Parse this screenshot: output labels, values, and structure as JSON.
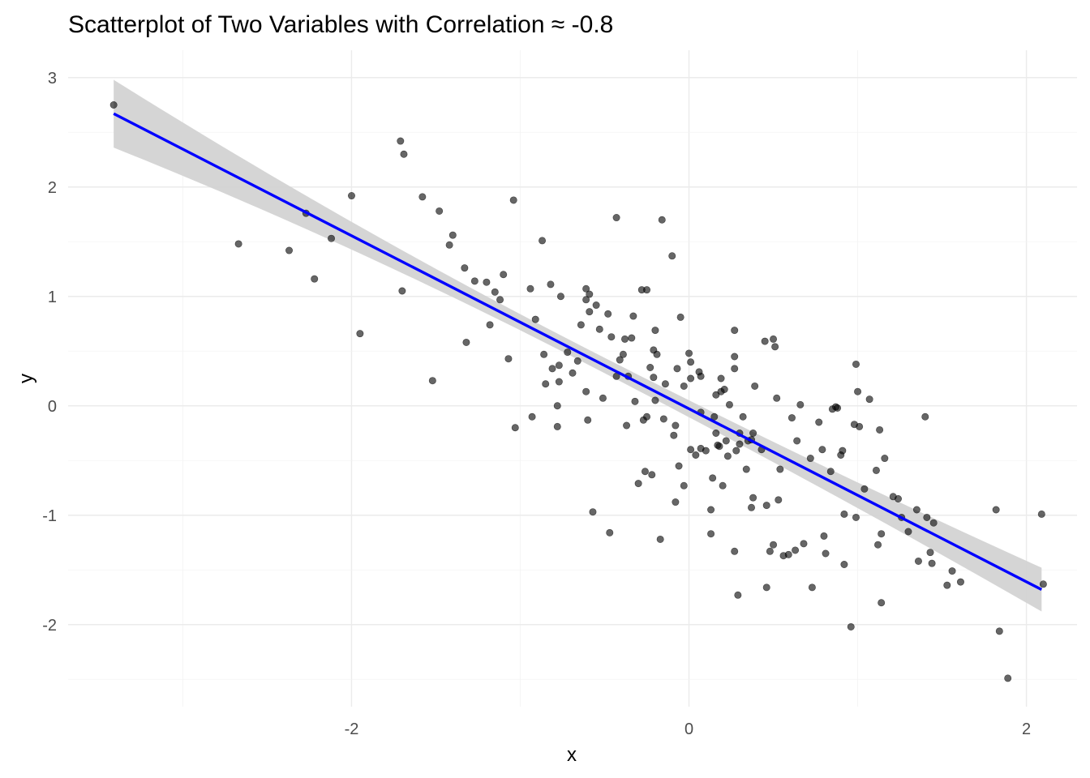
{
  "chart_data": {
    "type": "scatter",
    "title": "Scatterplot of Two Variables with Correlation ≈ -0.8",
    "xlabel": "x",
    "ylabel": "y",
    "xlim": [
      -3.68,
      2.3
    ],
    "ylim": [
      -2.75,
      3.25
    ],
    "x_ticks": [
      -2,
      0,
      2
    ],
    "y_ticks": [
      -2,
      -1,
      0,
      1,
      2,
      3
    ],
    "x_tick_labels": [
      "-2",
      "0",
      "2"
    ],
    "y_tick_labels": [
      "-2",
      "-1",
      "0",
      "1",
      "2",
      "3"
    ],
    "grid": true,
    "legend": "none",
    "colors": {
      "points": "#000000",
      "fit_line": "#0000ff",
      "confidence_band": "#d3d3d3"
    },
    "fit": {
      "method": "linear",
      "x_range": [
        -3.41,
        2.09
      ],
      "y_at_start": 2.67,
      "y_at_end": -1.68,
      "band_halfwidth_at_start": 0.31,
      "band_halfwidth_at_end": 0.2,
      "band_halfwidth_at_center": 0.07
    },
    "points": [
      [
        -3.41,
        2.75
      ],
      [
        -2.67,
        1.48
      ],
      [
        -2.37,
        1.42
      ],
      [
        -2.27,
        1.76
      ],
      [
        -2.22,
        1.16
      ],
      [
        -2.12,
        1.53
      ],
      [
        -2.0,
        1.92
      ],
      [
        -1.95,
        0.66
      ],
      [
        -1.71,
        2.42
      ],
      [
        -1.69,
        2.3
      ],
      [
        -1.7,
        1.05
      ],
      [
        -1.58,
        1.91
      ],
      [
        -1.52,
        0.23
      ],
      [
        -1.48,
        1.78
      ],
      [
        -1.42,
        1.47
      ],
      [
        -1.4,
        1.56
      ],
      [
        -1.33,
        1.26
      ],
      [
        -1.32,
        0.58
      ],
      [
        -1.27,
        1.14
      ],
      [
        -1.2,
        1.13
      ],
      [
        -1.18,
        0.74
      ],
      [
        -1.15,
        1.04
      ],
      [
        -1.12,
        0.97
      ],
      [
        -1.1,
        1.2
      ],
      [
        -1.07,
        0.43
      ],
      [
        -1.04,
        1.88
      ],
      [
        -1.03,
        -0.2
      ],
      [
        -0.94,
        1.07
      ],
      [
        -0.93,
        -0.1
      ],
      [
        -0.91,
        0.79
      ],
      [
        -0.87,
        1.51
      ],
      [
        -0.86,
        0.47
      ],
      [
        -0.85,
        0.2
      ],
      [
        -0.82,
        1.11
      ],
      [
        -0.81,
        0.34
      ],
      [
        -0.78,
        -0.19
      ],
      [
        -0.78,
        0.0
      ],
      [
        -0.77,
        0.22
      ],
      [
        -0.77,
        0.37
      ],
      [
        -0.76,
        1.0
      ],
      [
        -0.72,
        0.49
      ],
      [
        -0.69,
        0.3
      ],
      [
        -0.66,
        0.41
      ],
      [
        -0.64,
        0.74
      ],
      [
        -0.61,
        1.07
      ],
      [
        -0.61,
        0.97
      ],
      [
        -0.61,
        0.13
      ],
      [
        -0.6,
        -0.13
      ],
      [
        -0.59,
        1.02
      ],
      [
        -0.59,
        0.86
      ],
      [
        -0.57,
        -0.97
      ],
      [
        -0.55,
        0.92
      ],
      [
        -0.53,
        0.7
      ],
      [
        -0.51,
        0.07
      ],
      [
        -0.48,
        0.84
      ],
      [
        -0.47,
        -1.16
      ],
      [
        -0.46,
        0.63
      ],
      [
        -0.43,
        1.72
      ],
      [
        -0.43,
        0.27
      ],
      [
        -0.41,
        0.42
      ],
      [
        -0.39,
        0.47
      ],
      [
        -0.38,
        0.61
      ],
      [
        -0.37,
        -0.18
      ],
      [
        -0.36,
        0.27
      ],
      [
        -0.34,
        0.62
      ],
      [
        -0.33,
        0.82
      ],
      [
        -0.32,
        0.04
      ],
      [
        -0.3,
        -0.71
      ],
      [
        -0.28,
        1.06
      ],
      [
        -0.27,
        -0.13
      ],
      [
        -0.26,
        -0.6
      ],
      [
        -0.25,
        1.06
      ],
      [
        -0.25,
        -0.1
      ],
      [
        -0.23,
        0.35
      ],
      [
        -0.22,
        -0.63
      ],
      [
        -0.21,
        0.51
      ],
      [
        -0.21,
        0.26
      ],
      [
        -0.2,
        0.69
      ],
      [
        -0.2,
        0.05
      ],
      [
        -0.19,
        0.47
      ],
      [
        -0.17,
        -1.22
      ],
      [
        -0.16,
        1.7
      ],
      [
        -0.15,
        -0.12
      ],
      [
        -0.14,
        0.2
      ],
      [
        -0.1,
        1.37
      ],
      [
        -0.09,
        -0.27
      ],
      [
        -0.08,
        -0.88
      ],
      [
        -0.08,
        -0.18
      ],
      [
        -0.07,
        0.34
      ],
      [
        -0.06,
        -0.55
      ],
      [
        -0.05,
        0.81
      ],
      [
        -0.03,
        -0.73
      ],
      [
        -0.03,
        0.18
      ],
      [
        0.0,
        0.48
      ],
      [
        0.01,
        0.4
      ],
      [
        0.01,
        0.25
      ],
      [
        0.01,
        -0.4
      ],
      [
        0.04,
        -0.45
      ],
      [
        0.06,
        0.31
      ],
      [
        0.07,
        -0.06
      ],
      [
        0.07,
        0.27
      ],
      [
        0.07,
        -0.39
      ],
      [
        0.1,
        -0.41
      ],
      [
        0.13,
        -1.17
      ],
      [
        0.13,
        -0.95
      ],
      [
        0.14,
        -0.66
      ],
      [
        0.15,
        -0.1
      ],
      [
        0.16,
        0.1
      ],
      [
        0.16,
        -0.25
      ],
      [
        0.17,
        -0.36
      ],
      [
        0.18,
        -0.37
      ],
      [
        0.19,
        0.13
      ],
      [
        0.19,
        0.25
      ],
      [
        0.2,
        -0.73
      ],
      [
        0.21,
        0.15
      ],
      [
        0.22,
        -0.32
      ],
      [
        0.23,
        -0.46
      ],
      [
        0.24,
        0.01
      ],
      [
        0.27,
        0.69
      ],
      [
        0.27,
        -1.33
      ],
      [
        0.27,
        0.45
      ],
      [
        0.27,
        0.34
      ],
      [
        0.28,
        -0.41
      ],
      [
        0.29,
        -1.73
      ],
      [
        0.3,
        -0.35
      ],
      [
        0.3,
        -0.25
      ],
      [
        0.32,
        -0.1
      ],
      [
        0.34,
        -0.58
      ],
      [
        0.35,
        -0.32
      ],
      [
        0.37,
        -0.93
      ],
      [
        0.37,
        -0.31
      ],
      [
        0.38,
        -0.84
      ],
      [
        0.38,
        -0.25
      ],
      [
        0.39,
        0.18
      ],
      [
        0.43,
        -0.4
      ],
      [
        0.45,
        0.59
      ],
      [
        0.46,
        -1.66
      ],
      [
        0.46,
        -0.91
      ],
      [
        0.48,
        -1.33
      ],
      [
        0.5,
        -1.27
      ],
      [
        0.5,
        0.61
      ],
      [
        0.51,
        0.54
      ],
      [
        0.52,
        0.07
      ],
      [
        0.53,
        -0.86
      ],
      [
        0.54,
        -0.58
      ],
      [
        0.56,
        -1.37
      ],
      [
        0.59,
        -1.36
      ],
      [
        0.61,
        -0.11
      ],
      [
        0.63,
        -1.32
      ],
      [
        0.64,
        -0.32
      ],
      [
        0.66,
        0.01
      ],
      [
        0.68,
        -1.26
      ],
      [
        0.72,
        -0.48
      ],
      [
        0.73,
        -1.66
      ],
      [
        0.77,
        -0.15
      ],
      [
        0.79,
        -0.4
      ],
      [
        0.8,
        -1.19
      ],
      [
        0.81,
        -1.35
      ],
      [
        0.84,
        -0.6
      ],
      [
        0.85,
        -0.03
      ],
      [
        0.87,
        -0.01
      ],
      [
        0.88,
        -0.02
      ],
      [
        0.9,
        -0.45
      ],
      [
        0.91,
        -0.41
      ],
      [
        0.92,
        -0.99
      ],
      [
        0.92,
        -1.45
      ],
      [
        0.96,
        -2.02
      ],
      [
        0.98,
        -0.17
      ],
      [
        0.99,
        0.38
      ],
      [
        0.99,
        -1.02
      ],
      [
        1.0,
        0.13
      ],
      [
        1.01,
        -0.19
      ],
      [
        1.04,
        -0.76
      ],
      [
        1.07,
        0.06
      ],
      [
        1.11,
        -0.59
      ],
      [
        1.12,
        -1.27
      ],
      [
        1.13,
        -0.22
      ],
      [
        1.14,
        -1.8
      ],
      [
        1.14,
        -1.17
      ],
      [
        1.16,
        -0.48
      ],
      [
        1.21,
        -0.83
      ],
      [
        1.24,
        -0.85
      ],
      [
        1.26,
        -1.02
      ],
      [
        1.3,
        -1.15
      ],
      [
        1.35,
        -0.95
      ],
      [
        1.36,
        -1.42
      ],
      [
        1.4,
        -0.1
      ],
      [
        1.41,
        -1.02
      ],
      [
        1.43,
        -1.34
      ],
      [
        1.44,
        -1.44
      ],
      [
        1.45,
        -1.07
      ],
      [
        1.53,
        -1.64
      ],
      [
        1.56,
        -1.51
      ],
      [
        1.61,
        -1.61
      ],
      [
        1.82,
        -0.95
      ],
      [
        1.84,
        -2.06
      ],
      [
        1.89,
        -2.49
      ],
      [
        2.09,
        -0.99
      ],
      [
        2.1,
        -1.63
      ]
    ]
  }
}
